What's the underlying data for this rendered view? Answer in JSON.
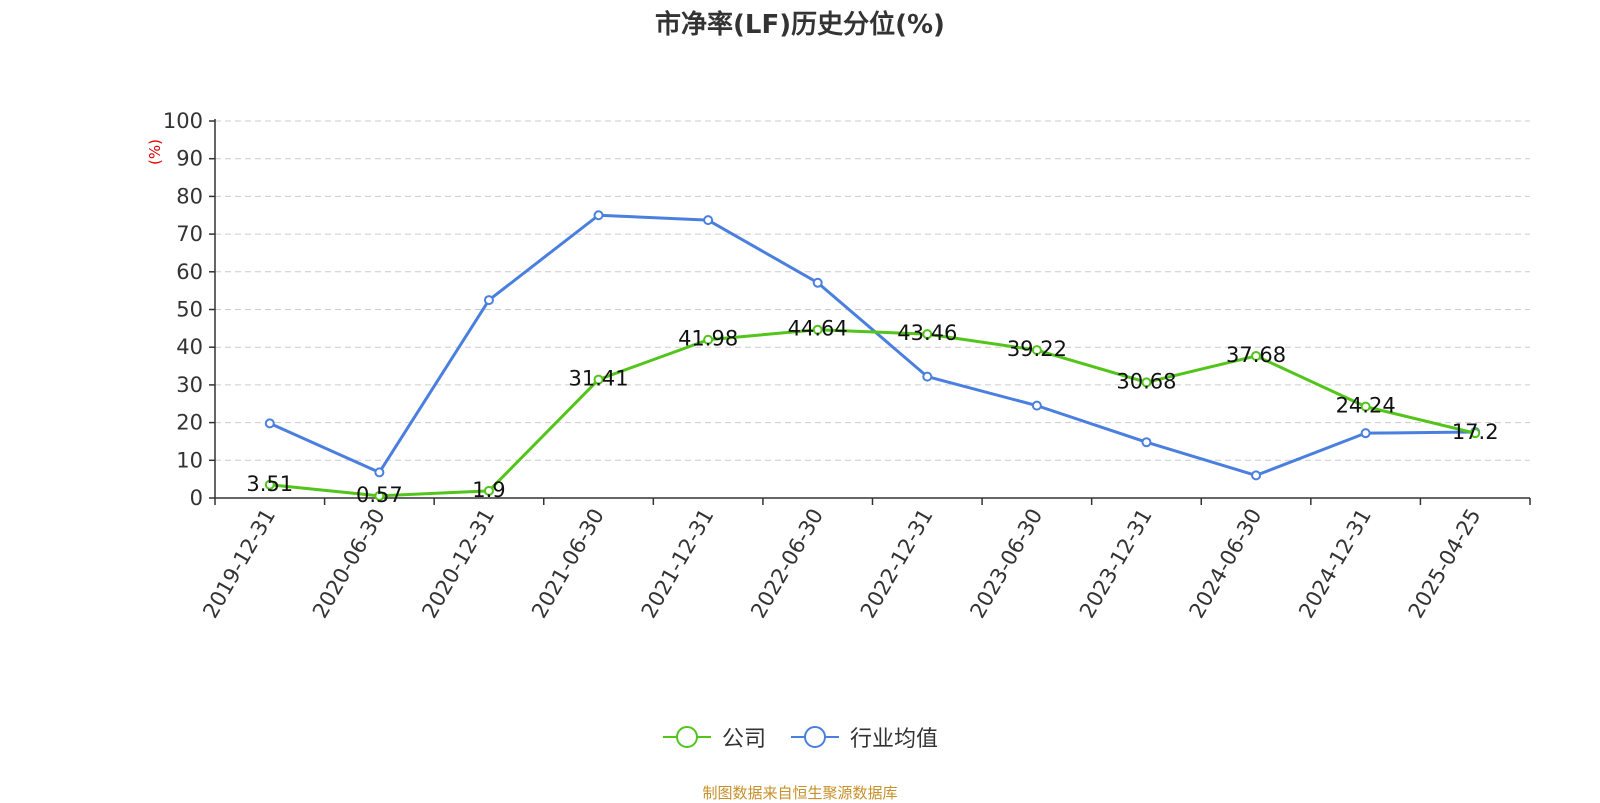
{
  "title": "市净率(LF)历史分位(%)",
  "source_note": "制图数据来自恒生聚源数据库",
  "colors": {
    "company": "#52c41a",
    "industry": "#4a7fdf",
    "unit_label": "#e00000",
    "source": "#c8902a",
    "grid": "#cccccc",
    "axis": "#333333"
  },
  "legend": [
    {
      "key": "company",
      "label": "公司"
    },
    {
      "key": "industry",
      "label": "行业均值"
    }
  ],
  "chart_data": {
    "type": "line",
    "title": "市净率(LF)历史分位(%)",
    "ylabel": "(%)",
    "xlabel": "",
    "ylim": [
      0,
      100
    ],
    "yticks": [
      0,
      10,
      20,
      30,
      40,
      50,
      60,
      70,
      80,
      90,
      100
    ],
    "grid": true,
    "legend_position": "bottom",
    "categories": [
      "2019-12-31",
      "2020-06-30",
      "2020-12-31",
      "2021-06-30",
      "2021-12-31",
      "2022-06-30",
      "2022-12-31",
      "2023-06-30",
      "2023-12-31",
      "2024-06-30",
      "2024-12-31",
      "2025-04-25"
    ],
    "series": [
      {
        "key": "company",
        "name": "公司",
        "show_labels": true,
        "values": [
          3.51,
          0.57,
          1.9,
          31.41,
          41.98,
          44.64,
          43.46,
          39.22,
          30.68,
          37.68,
          24.24,
          17.2
        ]
      },
      {
        "key": "industry",
        "name": "行业均值",
        "show_labels": false,
        "values": [
          19.8,
          6.8,
          52.5,
          75.0,
          73.7,
          57.1,
          32.2,
          24.5,
          14.8,
          6.0,
          17.2,
          17.5
        ]
      }
    ]
  }
}
